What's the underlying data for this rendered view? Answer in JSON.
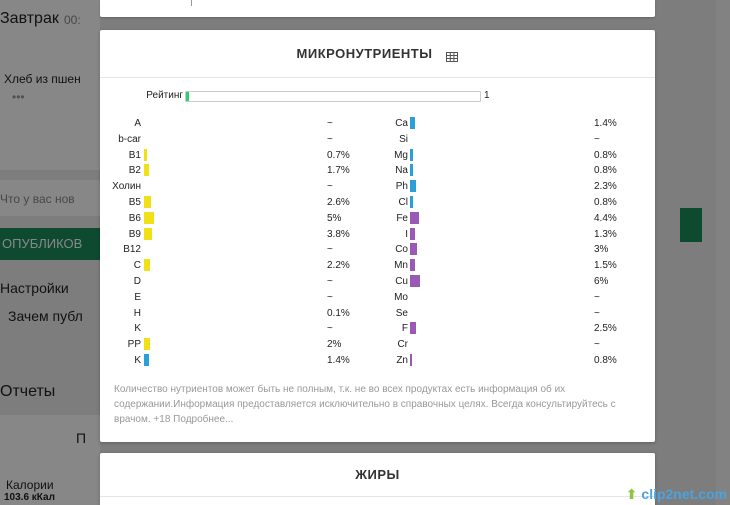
{
  "background": {
    "breakfast_label": "Завтрак",
    "breakfast_time": "00:",
    "food_item": "Хлеб из пшен",
    "food_dots": "•••",
    "question_placeholder": "Что у вас нов",
    "publish_button": "ОПУБЛИКОВ",
    "settings_link": "Настройки",
    "why_publish_link": "Зачем публ",
    "reports_heading": "Отчеты",
    "reports_letter": "П",
    "calories_label": "Калории",
    "calories_value": "103.6 кКал"
  },
  "micronutrients": {
    "title": "МИКРОНУТРИЕНТЫ",
    "rating_label": "Рейтинг",
    "rating_value": "1",
    "rating_fraction": 0.01,
    "left": [
      {
        "name": "A",
        "value": "~",
        "bar": 0,
        "color": "#f1e015"
      },
      {
        "name": "b-car",
        "value": "~",
        "bar": 0,
        "color": "#f1e015"
      },
      {
        "name": "B1",
        "value": "0.7%",
        "bar": 0.3,
        "color": "#f1e015"
      },
      {
        "name": "B2",
        "value": "1.7%",
        "bar": 0.5,
        "color": "#f1e015"
      },
      {
        "name": "Холин",
        "value": "~",
        "bar": 0,
        "color": "#f1e015"
      },
      {
        "name": "B5",
        "value": "2.6%",
        "bar": 0.65,
        "color": "#f1e015"
      },
      {
        "name": "B6",
        "value": "5%",
        "bar": 1,
        "color": "#f1e015"
      },
      {
        "name": "B9",
        "value": "3.8%",
        "bar": 0.8,
        "color": "#f1e015"
      },
      {
        "name": "B12",
        "value": "~",
        "bar": 0,
        "color": "#f1e015"
      },
      {
        "name": "C",
        "value": "2.2%",
        "bar": 0.6,
        "color": "#f1e015"
      },
      {
        "name": "D",
        "value": "~",
        "bar": 0,
        "color": "#f1e015"
      },
      {
        "name": "E",
        "value": "~",
        "bar": 0,
        "color": "#f1e015"
      },
      {
        "name": "H",
        "value": "0.1%",
        "bar": 0,
        "color": "#f1e015"
      },
      {
        "name": "K",
        "value": "~",
        "bar": 0,
        "color": "#f1e015"
      },
      {
        "name": "PP",
        "value": "2%",
        "bar": 0.55,
        "color": "#f1e015"
      },
      {
        "name": "K",
        "value": "1.4%",
        "bar": 0.45,
        "color": "#2a9fd8"
      }
    ],
    "right": [
      {
        "name": "Ca",
        "value": "1.4%",
        "bar": 0.45,
        "color": "#2a9fd8"
      },
      {
        "name": "Si",
        "value": "~",
        "bar": 0,
        "color": "#2a9fd8"
      },
      {
        "name": "Mg",
        "value": "0.8%",
        "bar": 0.3,
        "color": "#2a9fd8"
      },
      {
        "name": "Na",
        "value": "0.8%",
        "bar": 0.3,
        "color": "#2a9fd8"
      },
      {
        "name": "Ph",
        "value": "2.3%",
        "bar": 0.6,
        "color": "#2a9fd8"
      },
      {
        "name": "Cl",
        "value": "0.8%",
        "bar": 0.3,
        "color": "#2a9fd8"
      },
      {
        "name": "Fe",
        "value": "4.4%",
        "bar": 0.85,
        "color": "#9b59b6"
      },
      {
        "name": "I",
        "value": "1.3%",
        "bar": 0.45,
        "color": "#9b59b6"
      },
      {
        "name": "Co",
        "value": "3%",
        "bar": 0.65,
        "color": "#9b59b6"
      },
      {
        "name": "Mn",
        "value": "1.5%",
        "bar": 0.5,
        "color": "#9b59b6"
      },
      {
        "name": "Cu",
        "value": "6%",
        "bar": 1,
        "color": "#9b59b6"
      },
      {
        "name": "Mo",
        "value": "~",
        "bar": 0,
        "color": "#9b59b6"
      },
      {
        "name": "Se",
        "value": "~",
        "bar": 0,
        "color": "#9b59b6"
      },
      {
        "name": "F",
        "value": "2.5%",
        "bar": 0.6,
        "color": "#9b59b6"
      },
      {
        "name": "Cr",
        "value": "~",
        "bar": 0,
        "color": "#9b59b6"
      },
      {
        "name": "Zn",
        "value": "0.8%",
        "bar": 0.2,
        "color": "#9b59b6"
      }
    ],
    "disclaimer": "Количество нутриентов может быть не полным, т.к. не во всех продуктах есть информация об их содержании.Информация предоставляется исключительно в справочных целях. Всегда консультируйтесь с врачом. +18 Подробнее..."
  },
  "fats": {
    "title": "ЖИРЫ"
  },
  "watermark": {
    "text": "clip2net.com"
  }
}
